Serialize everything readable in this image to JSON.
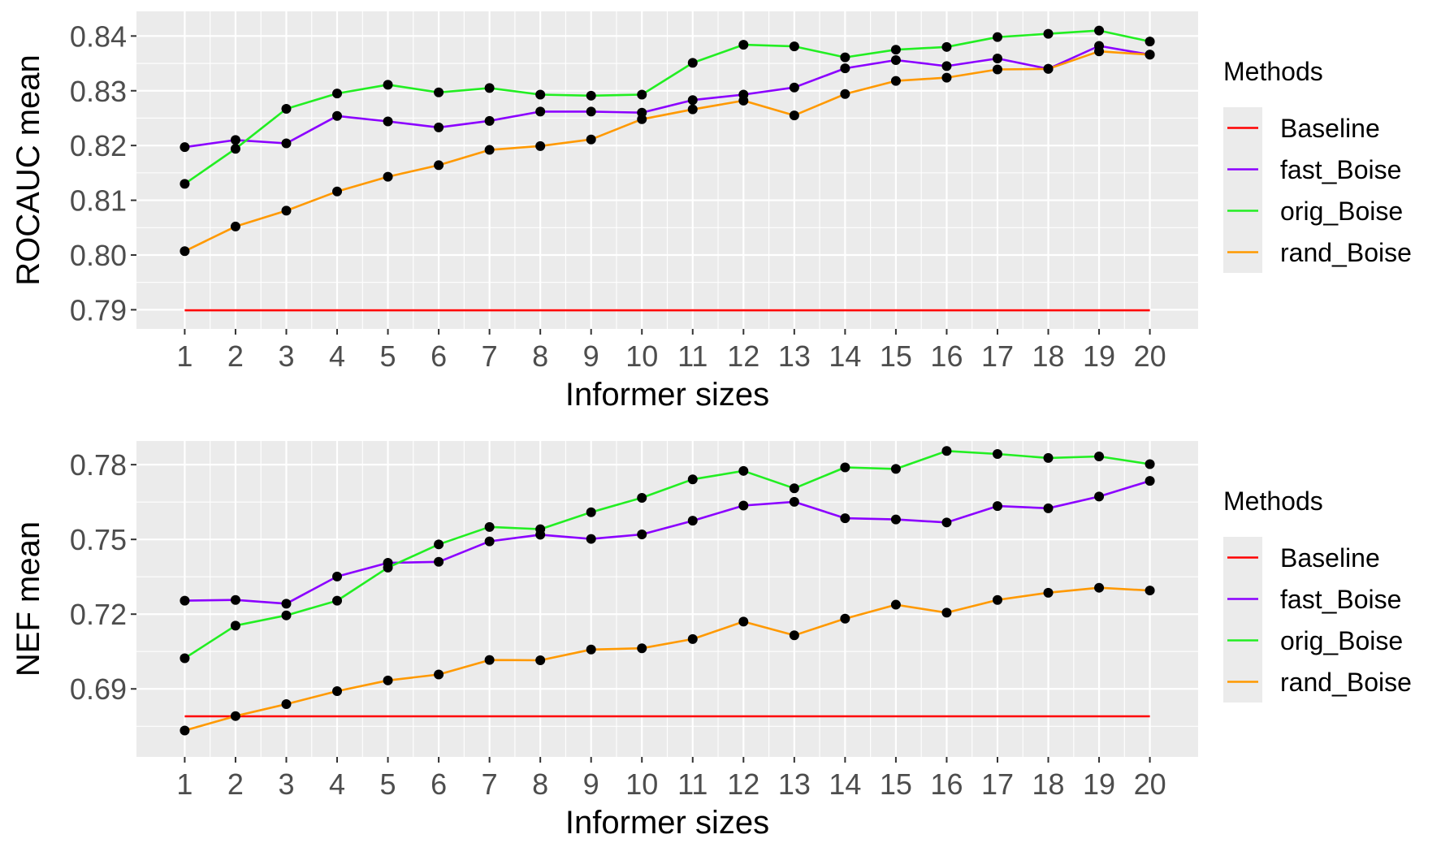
{
  "chart_data": [
    {
      "type": "line",
      "xlabel": "Informer sizes",
      "ylabel": "ROCAUC mean",
      "x": [
        1,
        2,
        3,
        4,
        5,
        6,
        7,
        8,
        9,
        10,
        11,
        12,
        13,
        14,
        15,
        16,
        17,
        18,
        19,
        20
      ],
      "xticks": [
        "1",
        "2",
        "3",
        "4",
        "5",
        "6",
        "7",
        "8",
        "9",
        "10",
        "11",
        "12",
        "13",
        "14",
        "15",
        "16",
        "17",
        "18",
        "19",
        "20"
      ],
      "ylim": [
        0.7865,
        0.8445
      ],
      "yticks": [
        0.79,
        0.8,
        0.81,
        0.82,
        0.83,
        0.84
      ],
      "ytick_labels": [
        "0.79",
        "0.80",
        "0.81",
        "0.82",
        "0.83",
        "0.84"
      ],
      "legend_title": "Methods",
      "legend_position": "right",
      "series": [
        {
          "name": "Baseline",
          "color": "#ff0000",
          "points": false,
          "values": [
            0.7899,
            0.7899,
            0.7899,
            0.7899,
            0.7899,
            0.7899,
            0.7899,
            0.7899,
            0.7899,
            0.7899,
            0.7899,
            0.7899,
            0.7899,
            0.7899,
            0.7899,
            0.7899,
            0.7899,
            0.7899,
            0.7899,
            0.7899
          ]
        },
        {
          "name": "fast_Boise",
          "color": "#8b00ff",
          "points": true,
          "values": [
            0.8197,
            0.821,
            0.8204,
            0.8254,
            0.8244,
            0.8233,
            0.8245,
            0.8262,
            0.8262,
            0.826,
            0.8283,
            0.8293,
            0.8306,
            0.8341,
            0.8356,
            0.8345,
            0.8359,
            0.834,
            0.8382,
            0.8366
          ]
        },
        {
          "name": "orig_Boise",
          "color": "#22ee22",
          "points": true,
          "values": [
            0.813,
            0.8194,
            0.8267,
            0.8295,
            0.8311,
            0.8297,
            0.8305,
            0.8293,
            0.8291,
            0.8293,
            0.8351,
            0.8384,
            0.8381,
            0.8361,
            0.8375,
            0.838,
            0.8398,
            0.8404,
            0.841,
            0.839
          ]
        },
        {
          "name": "rand_Boise",
          "color": "#ff9900",
          "points": true,
          "values": [
            0.8007,
            0.8052,
            0.8081,
            0.8116,
            0.8143,
            0.8164,
            0.8192,
            0.8199,
            0.8211,
            0.8248,
            0.8266,
            0.8282,
            0.8255,
            0.8294,
            0.8318,
            0.8324,
            0.8339,
            0.834,
            0.8372,
            0.8366
          ]
        }
      ]
    },
    {
      "type": "line",
      "xlabel": "Informer sizes",
      "ylabel": "NEF mean",
      "x": [
        1,
        2,
        3,
        4,
        5,
        6,
        7,
        8,
        9,
        10,
        11,
        12,
        13,
        14,
        15,
        16,
        17,
        18,
        19,
        20
      ],
      "xticks": [
        "1",
        "2",
        "3",
        "4",
        "5",
        "6",
        "7",
        "8",
        "9",
        "10",
        "11",
        "12",
        "13",
        "14",
        "15",
        "16",
        "17",
        "18",
        "19",
        "20"
      ],
      "ylim": [
        0.6627,
        0.7895
      ],
      "yticks": [
        0.69,
        0.72,
        0.75,
        0.78
      ],
      "ytick_labels": [
        "0.69",
        "0.72",
        "0.75",
        "0.78"
      ],
      "legend_title": "Methods",
      "legend_position": "right",
      "series": [
        {
          "name": "Baseline",
          "color": "#ff0000",
          "points": false,
          "values": [
            0.679,
            0.679,
            0.679,
            0.679,
            0.679,
            0.679,
            0.679,
            0.679,
            0.679,
            0.679,
            0.679,
            0.679,
            0.679,
            0.679,
            0.679,
            0.679,
            0.679,
            0.679,
            0.679,
            0.679
          ]
        },
        {
          "name": "fast_Boise",
          "color": "#8b00ff",
          "points": true,
          "values": [
            0.7254,
            0.7257,
            0.7242,
            0.7351,
            0.7406,
            0.741,
            0.7492,
            0.7519,
            0.7502,
            0.752,
            0.7575,
            0.7636,
            0.7651,
            0.7585,
            0.758,
            0.7568,
            0.7634,
            0.7625,
            0.7672,
            0.7735
          ]
        },
        {
          "name": "orig_Boise",
          "color": "#22ee22",
          "points": true,
          "values": [
            0.7023,
            0.7154,
            0.7195,
            0.7254,
            0.7387,
            0.748,
            0.755,
            0.7541,
            0.7609,
            0.7667,
            0.7741,
            0.7775,
            0.7705,
            0.7789,
            0.7783,
            0.7855,
            0.7843,
            0.7827,
            0.7833,
            0.7802
          ]
        },
        {
          "name": "rand_Boise",
          "color": "#ff9900",
          "points": true,
          "values": [
            0.6733,
            0.6791,
            0.6839,
            0.6891,
            0.6934,
            0.6958,
            0.7016,
            0.7015,
            0.7058,
            0.7063,
            0.71,
            0.717,
            0.7115,
            0.7182,
            0.7238,
            0.7206,
            0.7257,
            0.7286,
            0.7306,
            0.7295
          ]
        }
      ]
    }
  ]
}
